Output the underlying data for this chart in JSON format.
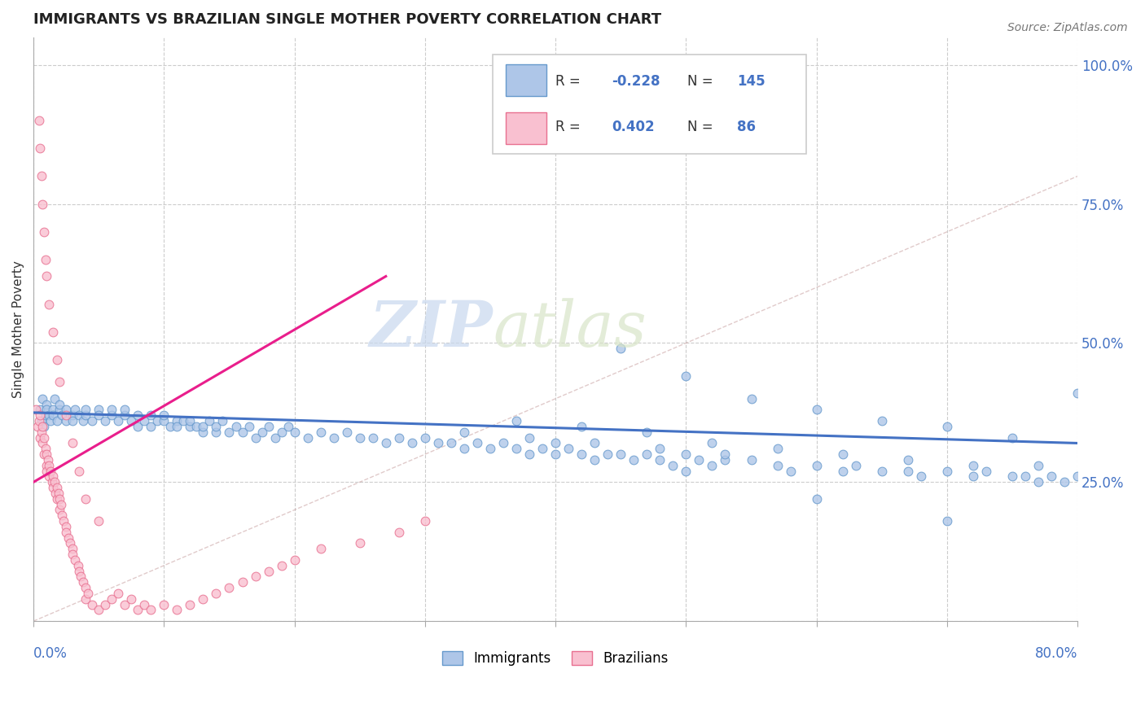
{
  "title": "IMMIGRANTS VS BRAZILIAN SINGLE MOTHER POVERTY CORRELATION CHART",
  "source_text": "Source: ZipAtlas.com",
  "ylabel": "Single Mother Poverty",
  "xlim": [
    0.0,
    0.8
  ],
  "ylim": [
    0.0,
    1.05
  ],
  "right_ytick_vals": [
    0.25,
    0.5,
    0.75,
    1.0
  ],
  "right_ytick_labels": [
    "25.0%",
    "50.0%",
    "75.0%",
    "100.0%"
  ],
  "blue_face": "#aec6e8",
  "blue_edge": "#6699cc",
  "pink_face": "#f9c0d0",
  "pink_edge": "#e87090",
  "blue_line_color": "#4472c4",
  "pink_line_color": "#e91e8c",
  "identity_line_color": "#c8a0a0",
  "grid_color": "#cccccc",
  "title_color": "#222222",
  "watermark_zip": "ZIP",
  "watermark_atlas": "atlas",
  "blue_x": [
    0.005,
    0.006,
    0.007,
    0.008,
    0.009,
    0.01,
    0.01,
    0.012,
    0.013,
    0.015,
    0.015,
    0.016,
    0.018,
    0.02,
    0.02,
    0.022,
    0.025,
    0.025,
    0.03,
    0.03,
    0.032,
    0.035,
    0.038,
    0.04,
    0.04,
    0.045,
    0.05,
    0.05,
    0.055,
    0.06,
    0.06,
    0.065,
    0.07,
    0.07,
    0.075,
    0.08,
    0.08,
    0.085,
    0.09,
    0.09,
    0.095,
    0.1,
    0.1,
    0.105,
    0.11,
    0.11,
    0.115,
    0.12,
    0.12,
    0.125,
    0.13,
    0.13,
    0.135,
    0.14,
    0.14,
    0.145,
    0.15,
    0.155,
    0.16,
    0.165,
    0.17,
    0.175,
    0.18,
    0.185,
    0.19,
    0.195,
    0.2,
    0.21,
    0.22,
    0.23,
    0.24,
    0.25,
    0.26,
    0.27,
    0.28,
    0.29,
    0.3,
    0.31,
    0.32,
    0.33,
    0.34,
    0.35,
    0.36,
    0.37,
    0.38,
    0.39,
    0.4,
    0.41,
    0.42,
    0.43,
    0.44,
    0.45,
    0.46,
    0.47,
    0.48,
    0.49,
    0.5,
    0.51,
    0.52,
    0.53,
    0.55,
    0.57,
    0.58,
    0.6,
    0.62,
    0.63,
    0.65,
    0.67,
    0.68,
    0.7,
    0.72,
    0.73,
    0.75,
    0.76,
    0.77,
    0.78,
    0.79,
    0.8,
    0.45,
    0.5,
    0.55,
    0.6,
    0.65,
    0.7,
    0.75,
    0.8,
    0.4,
    0.5,
    0.6,
    0.7,
    0.37,
    0.42,
    0.47,
    0.52,
    0.57,
    0.62,
    0.67,
    0.72,
    0.77,
    0.33,
    0.38,
    0.43,
    0.48,
    0.53
  ],
  "blue_y": [
    0.38,
    0.36,
    0.4,
    0.35,
    0.37,
    0.39,
    0.38,
    0.37,
    0.36,
    0.38,
    0.37,
    0.4,
    0.36,
    0.38,
    0.39,
    0.37,
    0.36,
    0.38,
    0.37,
    0.36,
    0.38,
    0.37,
    0.36,
    0.37,
    0.38,
    0.36,
    0.38,
    0.37,
    0.36,
    0.37,
    0.38,
    0.36,
    0.37,
    0.38,
    0.36,
    0.37,
    0.35,
    0.36,
    0.37,
    0.35,
    0.36,
    0.36,
    0.37,
    0.35,
    0.36,
    0.35,
    0.36,
    0.35,
    0.36,
    0.35,
    0.34,
    0.35,
    0.36,
    0.34,
    0.35,
    0.36,
    0.34,
    0.35,
    0.34,
    0.35,
    0.33,
    0.34,
    0.35,
    0.33,
    0.34,
    0.35,
    0.34,
    0.33,
    0.34,
    0.33,
    0.34,
    0.33,
    0.33,
    0.32,
    0.33,
    0.32,
    0.33,
    0.32,
    0.32,
    0.31,
    0.32,
    0.31,
    0.32,
    0.31,
    0.3,
    0.31,
    0.3,
    0.31,
    0.3,
    0.29,
    0.3,
    0.3,
    0.29,
    0.3,
    0.29,
    0.28,
    0.3,
    0.29,
    0.28,
    0.29,
    0.29,
    0.28,
    0.27,
    0.28,
    0.27,
    0.28,
    0.27,
    0.27,
    0.26,
    0.27,
    0.26,
    0.27,
    0.26,
    0.26,
    0.25,
    0.26,
    0.25,
    0.26,
    0.49,
    0.44,
    0.4,
    0.38,
    0.36,
    0.35,
    0.33,
    0.41,
    0.32,
    0.27,
    0.22,
    0.18,
    0.36,
    0.35,
    0.34,
    0.32,
    0.31,
    0.3,
    0.29,
    0.28,
    0.28,
    0.34,
    0.33,
    0.32,
    0.31,
    0.3
  ],
  "pink_x": [
    0.002,
    0.003,
    0.004,
    0.005,
    0.005,
    0.006,
    0.007,
    0.007,
    0.008,
    0.008,
    0.009,
    0.01,
    0.01,
    0.01,
    0.011,
    0.012,
    0.012,
    0.013,
    0.014,
    0.015,
    0.015,
    0.016,
    0.017,
    0.018,
    0.018,
    0.019,
    0.02,
    0.02,
    0.021,
    0.022,
    0.023,
    0.025,
    0.025,
    0.027,
    0.028,
    0.03,
    0.03,
    0.032,
    0.034,
    0.035,
    0.036,
    0.038,
    0.04,
    0.04,
    0.042,
    0.045,
    0.05,
    0.055,
    0.06,
    0.065,
    0.07,
    0.075,
    0.08,
    0.085,
    0.09,
    0.1,
    0.11,
    0.12,
    0.13,
    0.14,
    0.15,
    0.16,
    0.17,
    0.18,
    0.19,
    0.2,
    0.22,
    0.25,
    0.28,
    0.3,
    0.004,
    0.005,
    0.006,
    0.007,
    0.008,
    0.009,
    0.01,
    0.012,
    0.015,
    0.018,
    0.02,
    0.025,
    0.03,
    0.035,
    0.04,
    0.05
  ],
  "pink_y": [
    0.38,
    0.35,
    0.36,
    0.37,
    0.33,
    0.34,
    0.35,
    0.32,
    0.33,
    0.3,
    0.31,
    0.3,
    0.28,
    0.27,
    0.29,
    0.28,
    0.26,
    0.27,
    0.25,
    0.26,
    0.24,
    0.25,
    0.23,
    0.24,
    0.22,
    0.23,
    0.22,
    0.2,
    0.21,
    0.19,
    0.18,
    0.17,
    0.16,
    0.15,
    0.14,
    0.13,
    0.12,
    0.11,
    0.1,
    0.09,
    0.08,
    0.07,
    0.06,
    0.04,
    0.05,
    0.03,
    0.02,
    0.03,
    0.04,
    0.05,
    0.03,
    0.04,
    0.02,
    0.03,
    0.02,
    0.03,
    0.02,
    0.03,
    0.04,
    0.05,
    0.06,
    0.07,
    0.08,
    0.09,
    0.1,
    0.11,
    0.13,
    0.14,
    0.16,
    0.18,
    0.9,
    0.85,
    0.8,
    0.75,
    0.7,
    0.65,
    0.62,
    0.57,
    0.52,
    0.47,
    0.43,
    0.37,
    0.32,
    0.27,
    0.22,
    0.18
  ],
  "pink_line_x": [
    0.0,
    0.27
  ],
  "pink_line_y": [
    0.25,
    0.62
  ],
  "blue_line_x": [
    0.0,
    0.8
  ],
  "blue_line_y": [
    0.375,
    0.32
  ]
}
